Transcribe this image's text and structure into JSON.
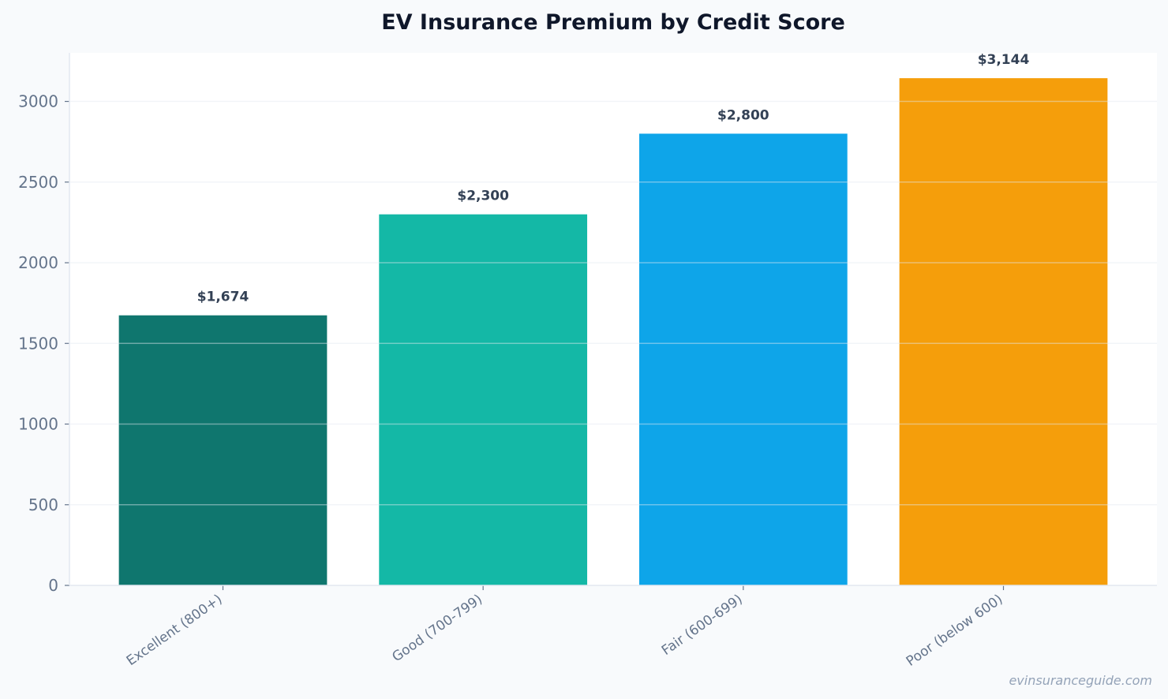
{
  "chart_data": {
    "type": "bar",
    "title": "EV Insurance Premium by Credit Score",
    "xlabel": "",
    "ylabel": "",
    "categories": [
      "Excellent (800+)",
      "Good (700-799)",
      "Fair (600-699)",
      "Poor (below 600)"
    ],
    "values": [
      1674,
      2300,
      2800,
      3144
    ],
    "data_labels": [
      "$1,674",
      "$2,300",
      "$2,800",
      "$3,144"
    ],
    "colors": [
      "#0f766e",
      "#14b8a6",
      "#0ea5e9",
      "#f59e0b"
    ],
    "ylim": [
      0,
      3301
    ],
    "yticks": [
      0,
      500,
      1000,
      1500,
      2000,
      2500,
      3000
    ],
    "grid": true,
    "legend": "none"
  },
  "watermark": "evinsuranceguide.com"
}
